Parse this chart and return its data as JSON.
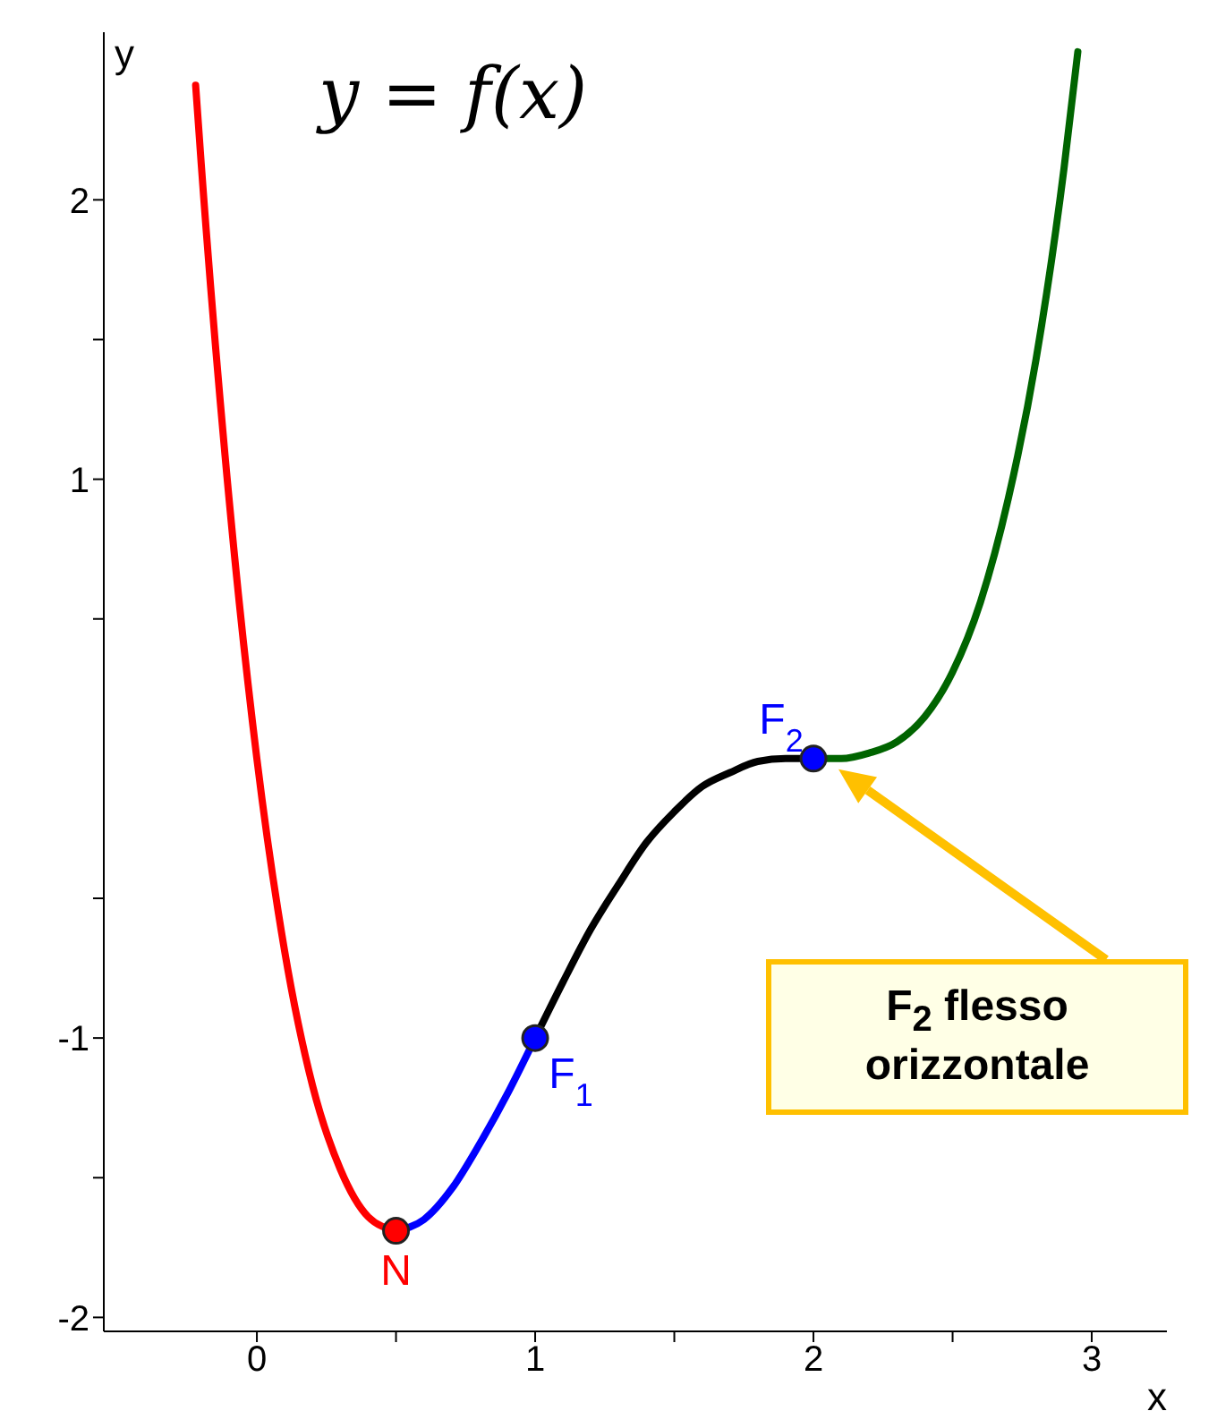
{
  "chart_data": {
    "type": "line",
    "title": "y = f(x)",
    "xlabel": "x",
    "ylabel": "y",
    "xlim": [
      -0.55,
      3.27
    ],
    "ylim": [
      -2.05,
      2.6
    ],
    "xticks": [
      0,
      {
        "value": 0.5,
        "label": null
      },
      1,
      {
        "value": 1.5,
        "label": null
      },
      2,
      {
        "value": 2.5,
        "label": null
      },
      3
    ],
    "yticks": [
      -2,
      {
        "value": -1.5,
        "label": null
      },
      -1,
      {
        "value": -0.5,
        "label": null
      },
      {
        "value": 0.5,
        "label": null
      },
      1,
      {
        "value": 1.5,
        "label": null
      },
      2
    ],
    "series": [
      {
        "color": "#ff0000",
        "x": [
          -0.22,
          -0.2,
          -0.1,
          0,
          0.1,
          0.2,
          0.3,
          0.4,
          0.5
        ],
        "values": [
          2.41,
          2.13,
          0.93,
          0,
          -0.69,
          -1.17,
          -1.47,
          -1.64,
          -1.69
        ]
      },
      {
        "color": "#0000ff",
        "x": [
          0.5,
          0.6,
          0.7,
          0.8,
          0.9,
          1
        ],
        "values": [
          -1.69,
          -1.65,
          -1.54,
          -1.38,
          -1.2,
          -1
        ]
      },
      {
        "color": "#000000",
        "x": [
          1,
          1.1,
          1.2,
          1.3,
          1.4,
          1.5,
          1.6,
          1.7,
          1.8,
          1.9,
          2
        ],
        "values": [
          -1,
          -0.8,
          -0.61,
          -0.45,
          -0.3,
          -0.19,
          -0.1,
          -0.05,
          -0.01,
          0,
          0
        ]
      },
      {
        "color": "#006400",
        "x": [
          2,
          2.1,
          2.2,
          2.3,
          2.4,
          2.5,
          2.6,
          2.7,
          2.8,
          2.9,
          2.95
        ],
        "values": [
          0,
          0,
          0.02,
          0.06,
          0.15,
          0.31,
          0.56,
          0.93,
          1.43,
          2.11,
          2.53
        ]
      },
      {
        "type": "scatter",
        "colors": [
          "#ff0000",
          "#0000ff",
          "#0000ff"
        ],
        "x": [
          0.5,
          1,
          2
        ],
        "values": [
          -1.69,
          -1,
          0
        ]
      }
    ],
    "annotations": [
      {
        "text": "N",
        "x": 0.5,
        "y": -1.69
      },
      {
        "text": "F$_{1}$",
        "x": 1,
        "y": -1
      },
      {
        "text": "F$_{2}$",
        "x": 2,
        "y": 0
      },
      "F$_{2}$ flesso orizzontale"
    ]
  }
}
